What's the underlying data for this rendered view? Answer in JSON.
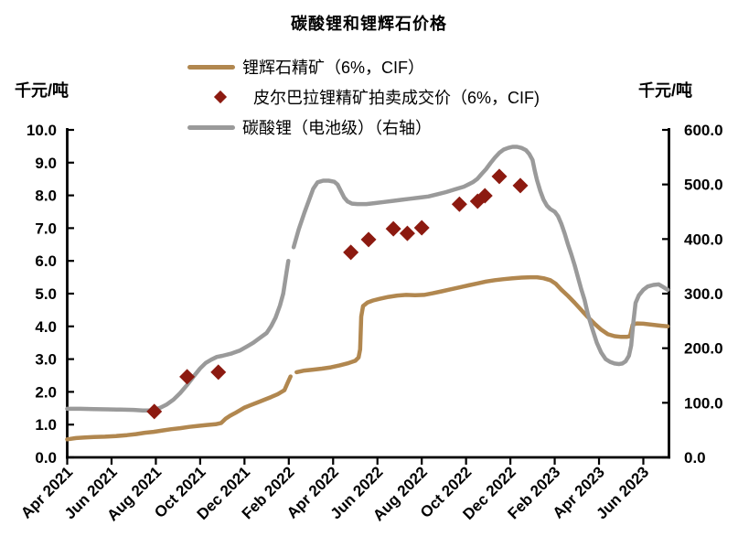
{
  "title": "碳酸锂和锂辉石价格",
  "axes": {
    "left_unit_label": "千元/吨",
    "right_unit_label": "千元/吨"
  },
  "legend": {
    "items": [
      {
        "label": "锂辉石精矿（6%，CIF）",
        "marker": "line",
        "color": "#B1874F"
      },
      {
        "label": "皮尔巴拉锂精矿拍卖成交价（6%，CIF)",
        "marker": "diamond",
        "color": "#8C1A10"
      },
      {
        "label": "碳酸锂（电池级）（右轴）",
        "marker": "line",
        "color": "#9A9A9A"
      }
    ]
  },
  "chart_data": {
    "type": "line",
    "title": "碳酸锂和锂辉石价格",
    "grid": false,
    "x_axis": {
      "unit": "month index from Apr 2021",
      "range": [
        0,
        27.2
      ],
      "tick_positions": [
        0,
        2,
        4,
        6,
        8,
        10,
        12,
        14,
        16,
        18,
        20,
        22,
        24,
        26
      ],
      "tick_labels": [
        "Apr 2021",
        "Jun 2021",
        "Aug 2021",
        "Oct 2021",
        "Dec 2021",
        "Feb 2022",
        "Apr 2022",
        "Jun 2022",
        "Aug 2022",
        "Oct 2022",
        "Dec 2022",
        "Feb 2023",
        "Apr 2023",
        "Jun 2023"
      ]
    },
    "left_axis": {
      "label": "千元/吨",
      "range": [
        0,
        10
      ],
      "tick_step": 1
    },
    "right_axis": {
      "label": "千元/吨",
      "range": [
        0,
        600
      ],
      "tick_step": 100
    },
    "series": [
      {
        "name": "锂辉石精矿（6%，CIF）",
        "axis": "left",
        "style": "line",
        "color": "#B1874F",
        "segments": [
          [
            [
              0,
              0.55
            ],
            [
              0.4,
              0.59
            ],
            [
              0.8,
              0.61
            ],
            [
              1.2,
              0.62
            ],
            [
              1.7,
              0.63
            ],
            [
              2.2,
              0.65
            ],
            [
              2.7,
              0.68
            ],
            [
              3.1,
              0.71
            ],
            [
              3.5,
              0.75
            ],
            [
              3.9,
              0.78
            ],
            [
              4.3,
              0.82
            ],
            [
              4.7,
              0.86
            ],
            [
              5.1,
              0.89
            ],
            [
              5.5,
              0.93
            ],
            [
              5.9,
              0.96
            ],
            [
              6.3,
              0.99
            ],
            [
              6.7,
              1.01
            ],
            [
              6.95,
              1.05
            ],
            [
              7.15,
              1.18
            ],
            [
              7.35,
              1.27
            ],
            [
              7.6,
              1.36
            ],
            [
              7.8,
              1.44
            ],
            [
              8,
              1.52
            ],
            [
              8.3,
              1.6
            ],
            [
              8.6,
              1.68
            ],
            [
              8.9,
              1.76
            ],
            [
              9.2,
              1.84
            ],
            [
              9.5,
              1.93
            ],
            [
              9.8,
              2.05
            ],
            [
              9.95,
              2.28
            ],
            [
              10.08,
              2.47
            ]
          ],
          [
            [
              10.35,
              2.6
            ],
            [
              10.7,
              2.65
            ],
            [
              11.1,
              2.68
            ],
            [
              11.5,
              2.71
            ],
            [
              11.9,
              2.75
            ],
            [
              12.3,
              2.81
            ],
            [
              12.7,
              2.88
            ],
            [
              13,
              2.95
            ],
            [
              13.15,
              3.05
            ],
            [
              13.22,
              3.3
            ],
            [
              13.27,
              4.3
            ],
            [
              13.35,
              4.62
            ],
            [
              13.55,
              4.73
            ],
            [
              13.8,
              4.79
            ],
            [
              14.1,
              4.84
            ],
            [
              14.5,
              4.9
            ],
            [
              14.9,
              4.94
            ],
            [
              15.3,
              4.96
            ],
            [
              15.7,
              4.95
            ],
            [
              16.1,
              4.96
            ],
            [
              16.5,
              5.01
            ],
            [
              16.9,
              5.07
            ],
            [
              17.3,
              5.13
            ],
            [
              17.7,
              5.19
            ],
            [
              18.1,
              5.25
            ],
            [
              18.5,
              5.31
            ],
            [
              18.9,
              5.37
            ],
            [
              19.3,
              5.41
            ],
            [
              19.7,
              5.44
            ],
            [
              20.1,
              5.47
            ],
            [
              20.5,
              5.49
            ],
            [
              20.9,
              5.5
            ],
            [
              21.2,
              5.5
            ],
            [
              21.5,
              5.47
            ],
            [
              21.8,
              5.41
            ],
            [
              22.05,
              5.3
            ],
            [
              22.3,
              5.12
            ],
            [
              22.6,
              4.93
            ],
            [
              22.9,
              4.72
            ],
            [
              23.2,
              4.5
            ],
            [
              23.5,
              4.28
            ],
            [
              23.8,
              4.08
            ],
            [
              24.1,
              3.9
            ],
            [
              24.4,
              3.76
            ],
            [
              24.7,
              3.7
            ],
            [
              25,
              3.68
            ],
            [
              25.25,
              3.68
            ],
            [
              25.4,
              3.7
            ],
            [
              25.52,
              4.05
            ],
            [
              25.7,
              4.09
            ],
            [
              26,
              4.08
            ],
            [
              26.4,
              4.05
            ],
            [
              26.8,
              4.02
            ],
            [
              27.1,
              4.0
            ]
          ]
        ]
      },
      {
        "name": "碳酸锂（电池级）（右轴）",
        "axis": "right",
        "style": "line",
        "color": "#9A9A9A",
        "segments": [
          [
            [
              0,
              89
            ],
            [
              0.6,
              89
            ],
            [
              1.2,
              88.5
            ],
            [
              1.8,
              88
            ],
            [
              2.4,
              87.5
            ],
            [
              3,
              87
            ],
            [
              3.4,
              86
            ],
            [
              3.7,
              86
            ],
            [
              3.95,
              87.5
            ],
            [
              4.2,
              91
            ],
            [
              4.5,
              97
            ],
            [
              4.8,
              106
            ],
            [
              5.1,
              118
            ],
            [
              5.4,
              132
            ],
            [
              5.7,
              148
            ],
            [
              6,
              163
            ],
            [
              6.25,
              173
            ],
            [
              6.5,
              179
            ],
            [
              6.75,
              184
            ],
            [
              7,
              186
            ],
            [
              7.4,
              190
            ],
            [
              7.8,
              196
            ],
            [
              8.1,
              203
            ],
            [
              8.4,
              210
            ],
            [
              8.7,
              219
            ],
            [
              9,
              228
            ],
            [
              9.2,
              240
            ],
            [
              9.4,
              256
            ],
            [
              9.6,
              278
            ],
            [
              9.75,
              300
            ],
            [
              9.9,
              340
            ],
            [
              9.98,
              360
            ]
          ],
          [
            [
              10.22,
              385
            ],
            [
              10.45,
              418
            ],
            [
              10.7,
              448
            ],
            [
              10.9,
              470
            ],
            [
              11.1,
              492
            ],
            [
              11.3,
              504
            ],
            [
              11.55,
              507
            ],
            [
              11.8,
              507
            ],
            [
              12.05,
              505
            ],
            [
              12.2,
              500
            ],
            [
              12.35,
              488
            ],
            [
              12.5,
              476
            ],
            [
              12.65,
              469
            ],
            [
              12.85,
              465
            ],
            [
              13.1,
              464
            ],
            [
              13.5,
              464
            ],
            [
              13.9,
              466
            ],
            [
              14.3,
              468
            ],
            [
              14.7,
              470
            ],
            [
              15.1,
              472
            ],
            [
              15.5,
              474
            ],
            [
              15.9,
              476
            ],
            [
              16.3,
              478
            ],
            [
              16.7,
              482
            ],
            [
              17.1,
              486
            ],
            [
              17.5,
              491
            ],
            [
              17.9,
              496
            ],
            [
              18.1,
              500
            ],
            [
              18.3,
              504
            ],
            [
              18.5,
              510
            ],
            [
              18.7,
              519
            ],
            [
              18.9,
              528
            ],
            [
              19.1,
              539
            ],
            [
              19.3,
              549
            ],
            [
              19.5,
              558
            ],
            [
              19.7,
              564
            ],
            [
              19.9,
              567
            ],
            [
              20.1,
              569
            ],
            [
              20.3,
              569
            ],
            [
              20.5,
              567
            ],
            [
              20.7,
              563
            ],
            [
              20.85,
              556
            ],
            [
              21,
              545
            ],
            [
              21.1,
              525
            ],
            [
              21.2,
              508
            ],
            [
              21.35,
              488
            ],
            [
              21.5,
              472
            ],
            [
              21.65,
              461
            ],
            [
              21.8,
              455
            ],
            [
              22,
              450
            ],
            [
              22.15,
              442
            ],
            [
              22.3,
              428
            ],
            [
              22.45,
              410
            ],
            [
              22.6,
              390
            ],
            [
              22.75,
              372
            ],
            [
              22.9,
              352
            ],
            [
              23.05,
              330
            ],
            [
              23.2,
              308
            ],
            [
              23.35,
              288
            ],
            [
              23.5,
              262
            ],
            [
              23.7,
              235
            ],
            [
              23.9,
              210
            ],
            [
              24.1,
              192
            ],
            [
              24.3,
              180
            ],
            [
              24.5,
              175
            ],
            [
              24.7,
              172
            ],
            [
              24.9,
              171
            ],
            [
              25.05,
              172
            ],
            [
              25.2,
              176
            ],
            [
              25.35,
              186
            ],
            [
              25.45,
              205
            ],
            [
              25.55,
              248
            ],
            [
              25.65,
              283
            ],
            [
              25.8,
              297
            ],
            [
              26,
              307
            ],
            [
              26.2,
              313
            ],
            [
              26.45,
              316
            ],
            [
              26.7,
              317
            ],
            [
              26.9,
              312
            ],
            [
              27.1,
              307
            ]
          ]
        ]
      },
      {
        "name": "皮尔巴拉锂精矿拍卖成交价（6%，CIF)",
        "axis": "left",
        "style": "scatter-diamond",
        "color": "#8C1A10",
        "points": [
          [
            3.93,
            1.4
          ],
          [
            5.41,
            2.46
          ],
          [
            6.82,
            2.6
          ],
          [
            12.8,
            6.26
          ],
          [
            13.6,
            6.65
          ],
          [
            14.72,
            6.98
          ],
          [
            15.35,
            6.84
          ],
          [
            16.0,
            7.01
          ],
          [
            17.7,
            7.73
          ],
          [
            18.52,
            7.82
          ],
          [
            18.85,
            7.99
          ],
          [
            19.5,
            8.58
          ],
          [
            20.45,
            8.3
          ]
        ]
      }
    ]
  }
}
